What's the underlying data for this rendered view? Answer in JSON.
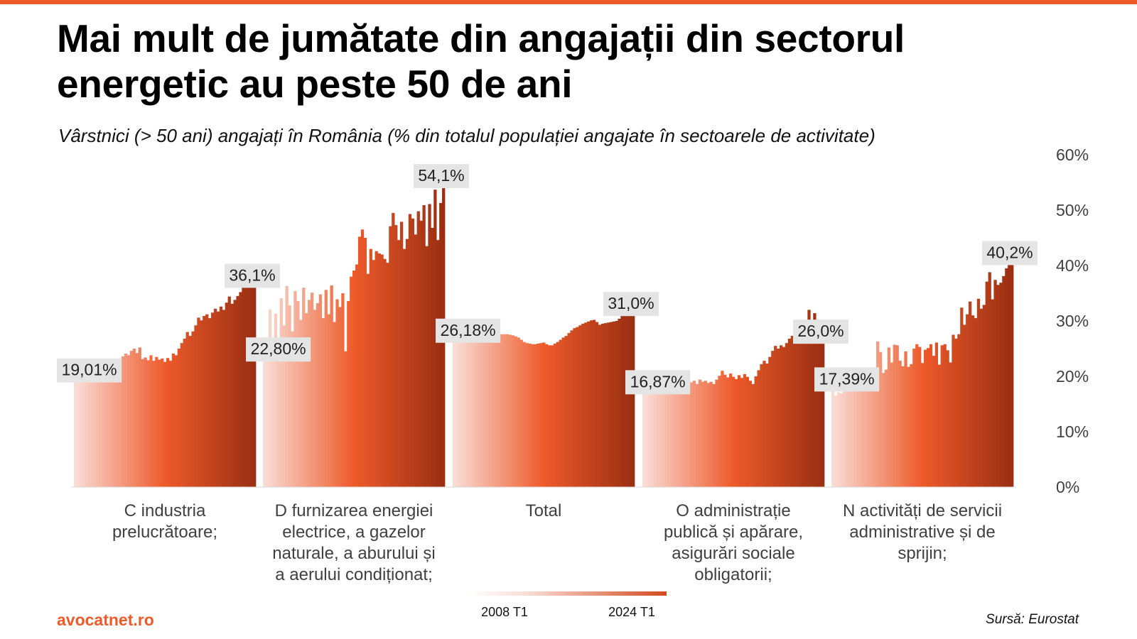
{
  "title": "Mai mult de jumătate din angajații din sectorul energetic au peste 50 de ani",
  "subtitle": "Vârstnici (> 50 ani) angajați în România (% din totalul populației angajate în sectoarele de activitate)",
  "brand": "avocatnet.ro",
  "source": "Sursă: Eurostat",
  "colors": {
    "accent": "#ee5a2a",
    "bar_start": "#f9dcd5",
    "bar_mid": "#ee5a2a",
    "bar_end": "#9a2f12",
    "label_bg": "#e4e4e4"
  },
  "chart_data": {
    "type": "bar",
    "ylim": [
      0,
      60
    ],
    "y_ticks": [
      "0%",
      "10%",
      "20%",
      "30%",
      "40%",
      "50%",
      "60%"
    ],
    "y_tick_values": [
      0,
      10,
      20,
      30,
      40,
      50,
      60
    ],
    "grid": false,
    "y_axis_position": "right",
    "legend": {
      "start": "2008 T1",
      "end": "2024 T1",
      "placement": "bottom-center"
    },
    "period": {
      "start": "2008 T1",
      "end": "2024 T1",
      "step": "quarter"
    },
    "panels": [
      {
        "name": "C industria prelucrătoare;",
        "label_lines": [
          "C industria",
          "prelucrătoare;"
        ],
        "first_label": "19,01%",
        "last_label": "36,1%",
        "values": [
          19.01,
          19.5,
          20.0,
          20.3,
          20.8,
          21.2,
          20.9,
          21.3,
          21.0,
          21.5,
          20.7,
          21.6,
          20.8,
          22.0,
          21.4,
          21.0,
          22.2,
          23.6,
          24.1,
          23.8,
          24.6,
          25.0,
          24.2,
          25.2,
          23.1,
          23.4,
          22.9,
          23.8,
          22.8,
          23.5,
          23.0,
          23.2,
          22.6,
          23.3,
          22.8,
          24.1,
          23.8,
          25.0,
          26.0,
          26.8,
          28.0,
          27.3,
          28.1,
          29.2,
          30.6,
          30.1,
          30.9,
          31.2,
          30.5,
          31.5,
          32.2,
          31.7,
          32.6,
          32.0,
          33.3,
          34.4,
          33.1,
          33.8,
          34.5,
          35.2,
          36.2,
          36.6,
          36.3,
          36.5,
          36.1
        ]
      },
      {
        "name": "D furnizarea energiei electrice, a gazelor naturale, a aburului și a aerului condiționat;",
        "label_lines": [
          "D furnizarea energiei",
          "electrice, a gazelor",
          "naturale, a aburului și",
          "a aerului condiționat;"
        ],
        "first_label": "22,80%",
        "last_label": "54,1%",
        "values": [
          22.8,
          23.1,
          32.1,
          24.6,
          31.3,
          22.9,
          34.1,
          29.2,
          36.3,
          32.8,
          28.1,
          35.4,
          33.6,
          30.2,
          36.0,
          31.4,
          33.8,
          35.1,
          32.0,
          33.2,
          34.8,
          30.5,
          35.6,
          31.2,
          36.4,
          29.8,
          33.9,
          32.5,
          35.0,
          24.5,
          33.6,
          38.0,
          39.1,
          40.2,
          45.2,
          46.5,
          45.0,
          38.5,
          43.0,
          41.0,
          42.6,
          42.2,
          42.0,
          41.2,
          40.5,
          47.1,
          49.5,
          47.3,
          44.6,
          47.9,
          43.0,
          44.8,
          49.3,
          48.5,
          45.6,
          49.8,
          48.1,
          50.9,
          43.5,
          51.1,
          46.8,
          53.7,
          44.6,
          51.3,
          54.1
        ]
      },
      {
        "name": "Total",
        "label_lines": [
          "Total"
        ],
        "first_label": "26,18%",
        "last_label": "31,0%",
        "values": [
          26.18,
          26.2,
          26.3,
          26.3,
          26.4,
          26.5,
          26.8,
          27.0,
          27.1,
          27.3,
          27.5,
          27.7,
          27.8,
          27.9,
          27.9,
          27.8,
          27.7,
          27.6,
          27.6,
          27.6,
          27.5,
          27.4,
          27.2,
          27.0,
          26.6,
          26.2,
          26.0,
          25.9,
          25.8,
          25.8,
          25.9,
          26.0,
          26.1,
          25.8,
          25.6,
          25.6,
          25.9,
          26.2,
          26.6,
          27.0,
          27.3,
          27.8,
          28.3,
          28.7,
          28.9,
          29.2,
          29.5,
          29.7,
          29.9,
          30.1,
          30.2,
          29.8,
          29.3,
          29.5,
          29.6,
          29.7,
          29.8,
          29.9,
          30.0,
          30.4,
          31.0,
          31.4,
          31.2,
          31.1,
          31.0
        ]
      },
      {
        "name": "O administrație publică și apărare, asigurări sociale obligatorii;",
        "label_lines": [
          "O administrație",
          "publică și apărare,",
          "asigurări sociale",
          "obligatorii;"
        ],
        "first_label": "16,87%",
        "last_label": "26,0%",
        "values": [
          16.87,
          17.1,
          17.0,
          17.3,
          17.5,
          17.8,
          18.0,
          18.6,
          19.2,
          19.5,
          19.0,
          18.4,
          19.2,
          18.7,
          19.6,
          20.3,
          19.5,
          18.9,
          19.2,
          18.6,
          19.4,
          19.0,
          19.2,
          18.8,
          19.0,
          18.6,
          19.4,
          20.1,
          21.0,
          20.3,
          19.8,
          20.5,
          19.9,
          19.5,
          20.2,
          19.7,
          20.4,
          19.9,
          19.2,
          18.6,
          20.0,
          21.1,
          22.2,
          22.8,
          22.3,
          23.5,
          24.6,
          25.5,
          25.0,
          25.6,
          25.3,
          26.0,
          26.8,
          27.3,
          27.0,
          27.4,
          27.8,
          28.0,
          28.1,
          32.0,
          29.7,
          31.4,
          30.2,
          28.5,
          26.0
        ]
      },
      {
        "name": "N activități de servicii administrative și de sprijin;",
        "label_lines": [
          "N activități de servicii",
          "administrative și de",
          "sprijin;"
        ],
        "first_label": "17,39%",
        "last_label": "40,2%",
        "values": [
          17.39,
          16.5,
          17.1,
          16.9,
          17.9,
          17.5,
          18.2,
          17.6,
          18.0,
          17.8,
          18.6,
          17.9,
          19.0,
          18.3,
          17.7,
          20.7,
          26.3,
          24.4,
          20.6,
          21.2,
          25.2,
          22.5,
          25.7,
          25.6,
          22.8,
          21.8,
          24.5,
          21.7,
          22.2,
          25.0,
          25.8,
          25.3,
          22.4,
          24.8,
          25.1,
          25.8,
          23.7,
          26.1,
          22.1,
          25.6,
          25.8,
          24.7,
          22.5,
          27.5,
          26.8,
          27.6,
          32.4,
          29.3,
          31.2,
          33.5,
          31.0,
          30.5,
          34.0,
          32.2,
          32.9,
          37.1,
          38.8,
          33.9,
          37.4,
          36.5,
          36.9,
          38.1,
          39.5,
          40.2,
          40.2
        ]
      }
    ]
  }
}
